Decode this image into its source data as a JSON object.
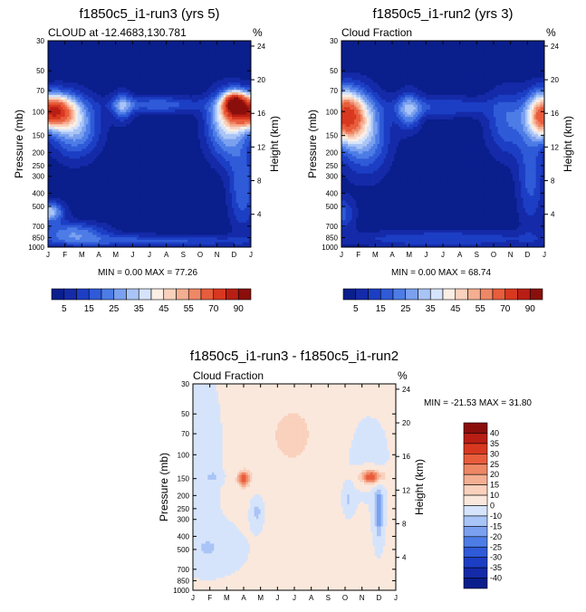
{
  "chart_data": [
    {
      "type": "heatmap",
      "title": "f1850c5_i1-run3 (yrs 5)",
      "subtitle_left": "CLOUD at -12.4683,130.781",
      "subtitle_right": "%",
      "xlabel": "",
      "ylabel": "Pressure (mb)",
      "ylabel_right": "Height (km)",
      "x_ticks": [
        "J",
        "F",
        "M",
        "A",
        "M",
        "J",
        "J",
        "A",
        "S",
        "O",
        "N",
        "D",
        "J"
      ],
      "y_ticks": [
        "30",
        "50",
        "70",
        "100",
        "150",
        "200",
        "250",
        "300",
        "400",
        "500",
        "700",
        "850",
        "1000"
      ],
      "y2_ticks": [
        "24",
        "20",
        "16",
        "12",
        "8",
        "4"
      ],
      "ylim": [
        30,
        1000
      ],
      "stats": "MIN =   0.00 MAX =  77.26",
      "min": 0.0,
      "max": 77.26,
      "colorbar_labels": [
        "5",
        "15",
        "25",
        "35",
        "45",
        "55",
        "70",
        "90"
      ]
    },
    {
      "type": "heatmap",
      "title": "f1850c5_i1-run2 (yrs 3)",
      "subtitle_left": "Cloud Fraction",
      "subtitle_right": "%",
      "xlabel": "",
      "ylabel": "Pressure (mb)",
      "ylabel_right": "Height (km)",
      "x_ticks": [
        "J",
        "F",
        "M",
        "A",
        "M",
        "J",
        "J",
        "A",
        "S",
        "O",
        "N",
        "D",
        "J"
      ],
      "y_ticks": [
        "30",
        "50",
        "70",
        "100",
        "150",
        "200",
        "250",
        "300",
        "400",
        "500",
        "700",
        "850",
        "1000"
      ],
      "y2_ticks": [
        "24",
        "20",
        "16",
        "12",
        "8",
        "4"
      ],
      "ylim": [
        30,
        1000
      ],
      "stats": "MIN =   0.00 MAX =  68.74",
      "min": 0.0,
      "max": 68.74,
      "colorbar_labels": [
        "5",
        "15",
        "25",
        "35",
        "45",
        "55",
        "70",
        "90"
      ]
    },
    {
      "type": "heatmap",
      "title": "f1850c5_i1-run3 - f1850c5_i1-run2",
      "subtitle_left": "Cloud Fraction",
      "subtitle_right": "%",
      "xlabel": "",
      "ylabel": "Pressure (mb)",
      "ylabel_right": "Height (km)",
      "x_ticks": [
        "J",
        "F",
        "M",
        "A",
        "M",
        "J",
        "J",
        "A",
        "S",
        "O",
        "N",
        "D",
        "J"
      ],
      "y_ticks": [
        "30",
        "50",
        "70",
        "100",
        "150",
        "200",
        "250",
        "300",
        "400",
        "500",
        "700",
        "850",
        "1000"
      ],
      "y2_ticks": [
        "24",
        "20",
        "16",
        "12",
        "8",
        "4"
      ],
      "ylim": [
        30,
        1000
      ],
      "stats": "MIN = -21.53 MAX =  31.80",
      "min": -21.53,
      "max": 31.8,
      "colorbar_labels": [
        "40",
        "35",
        "30",
        "25",
        "20",
        "15",
        "10",
        "0",
        "-10",
        "-15",
        "-20",
        "-25",
        "-30",
        "-35",
        "-40"
      ]
    }
  ],
  "colors": {
    "seq": [
      "#0a1e8c",
      "#142aa8",
      "#1c3ec4",
      "#2f5ad8",
      "#4d7ce6",
      "#7aa0ef",
      "#a9c4f6",
      "#d6e4fb",
      "#fbeee4",
      "#f9d1bd",
      "#f4ae92",
      "#ee8766",
      "#e85d3c",
      "#d8381f",
      "#b81e14",
      "#8a0f0c"
    ],
    "div": [
      "#8a0f0c",
      "#b81e14",
      "#d8381f",
      "#e85d3c",
      "#ee8766",
      "#f4ae92",
      "#f9d1bd",
      "#fbe8dc",
      "#d6e4fb",
      "#a9c4f6",
      "#7aa0ef",
      "#4d7ce6",
      "#2f5ad8",
      "#1c3ec4",
      "#142aa8",
      "#0a1e8c"
    ]
  }
}
